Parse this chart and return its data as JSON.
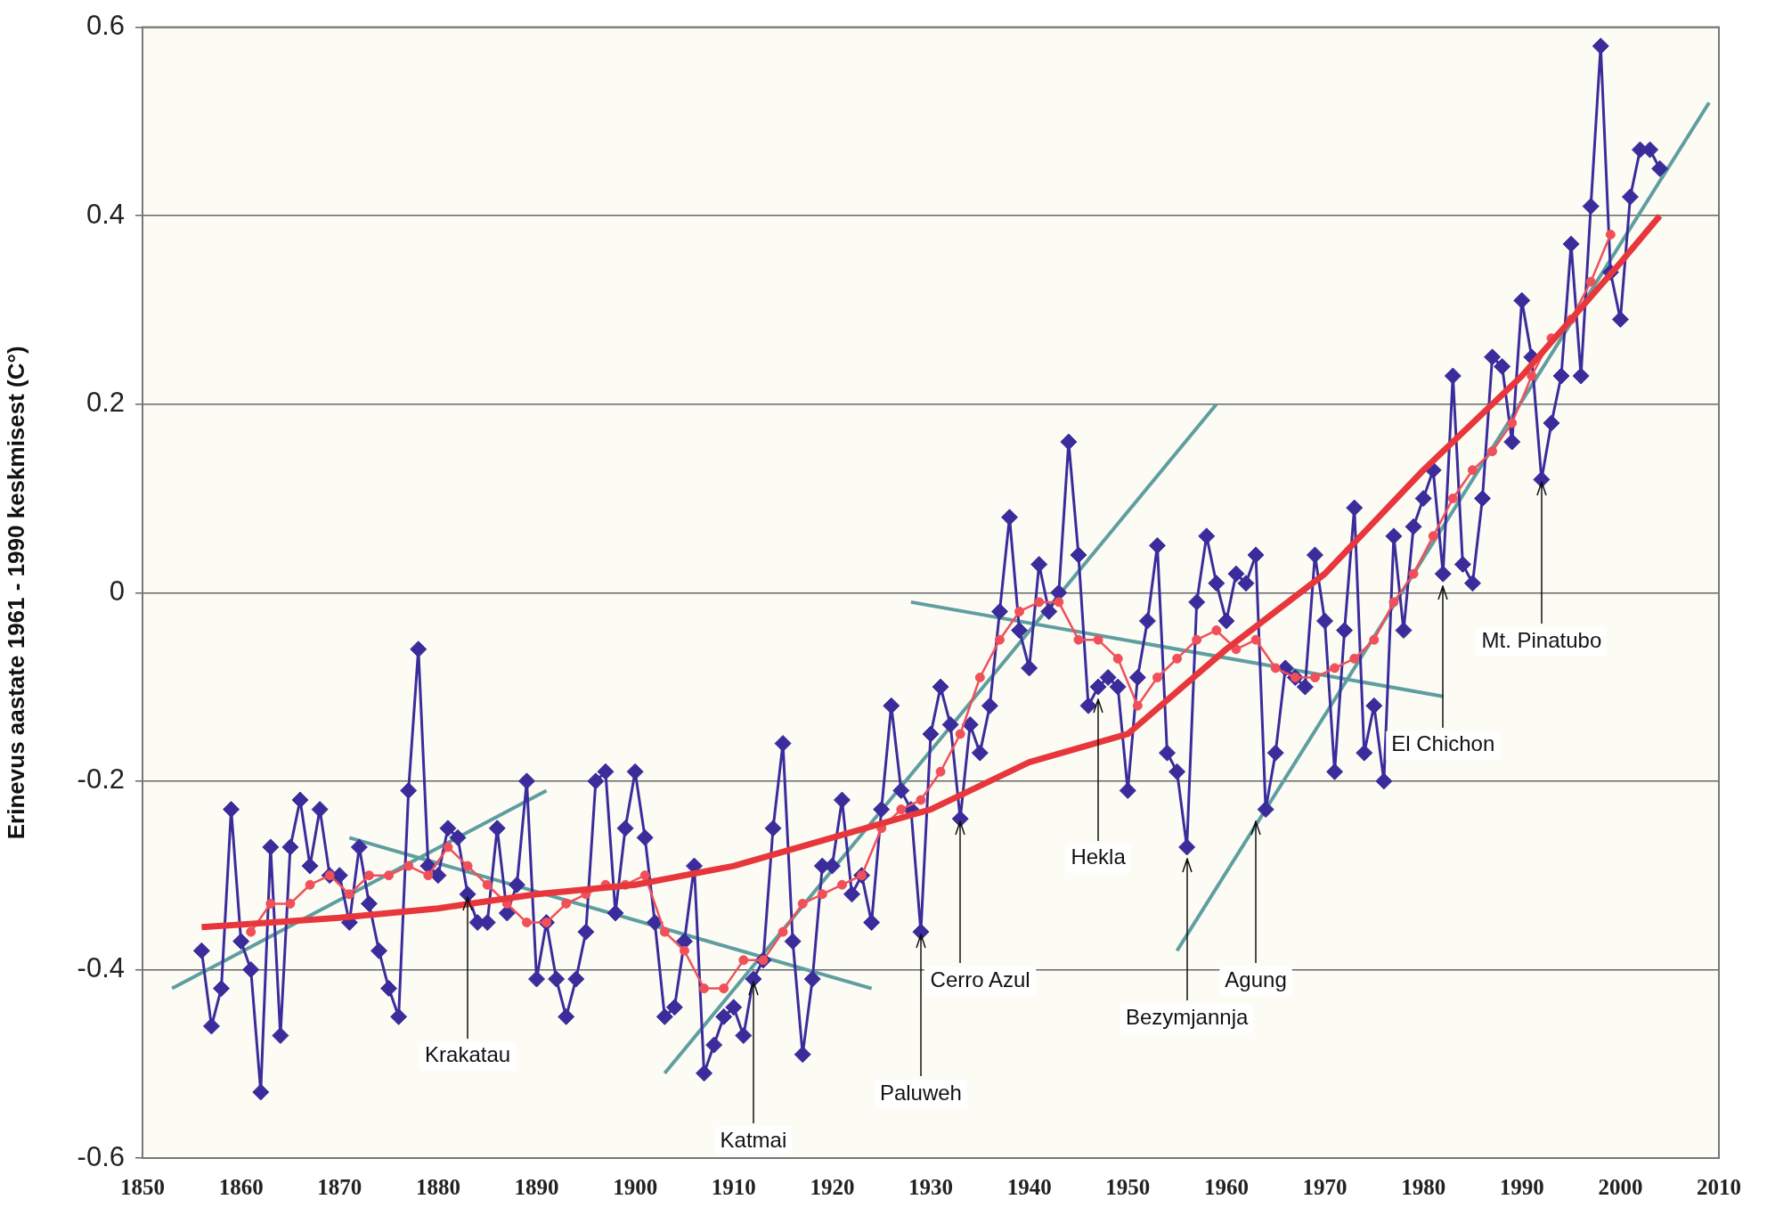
{
  "chart_data": {
    "type": "line",
    "ylabel": "Erinevus aastate 1961 - 1990 keskmisest (C°)",
    "xlim": [
      1850,
      2010
    ],
    "xticks": [
      1850,
      1860,
      1870,
      1880,
      1890,
      1900,
      1910,
      1920,
      1930,
      1940,
      1950,
      1960,
      1970,
      1980,
      1990,
      2000,
      2010
    ],
    "ylim": [
      -0.6,
      0.6
    ],
    "yticks": [
      -0.6,
      -0.4,
      -0.2,
      0,
      0.2,
      0.4,
      0.6
    ],
    "grid": "y",
    "legend": false,
    "series": [
      {
        "type": "line",
        "color": "#5f9ea0",
        "marker": "none",
        "x": [
          1853,
          1891
        ],
        "values": [
          -0.42,
          -0.21
        ]
      },
      {
        "type": "line",
        "color": "#5f9ea0",
        "marker": "none",
        "x": [
          1871,
          1924
        ],
        "values": [
          -0.26,
          -0.42
        ]
      },
      {
        "type": "line",
        "color": "#5f9ea0",
        "marker": "none",
        "x": [
          1903,
          1959
        ],
        "values": [
          -0.51,
          0.2
        ]
      },
      {
        "type": "line",
        "color": "#5f9ea0",
        "marker": "none",
        "x": [
          1928,
          1982
        ],
        "values": [
          -0.01,
          -0.11
        ]
      },
      {
        "type": "line",
        "color": "#5f9ea0",
        "marker": "none",
        "x": [
          1955,
          2009
        ],
        "values": [
          -0.38,
          0.52
        ]
      },
      {
        "type": "line",
        "color": "#3b2c9c",
        "marker": "diamond",
        "x": [
          1856,
          1857,
          1858,
          1859,
          1860,
          1861,
          1862,
          1863,
          1864,
          1865,
          1866,
          1867,
          1868,
          1869,
          1870,
          1871,
          1872,
          1873,
          1874,
          1875,
          1876,
          1877,
          1878,
          1879,
          1880,
          1881,
          1882,
          1883,
          1884,
          1885,
          1886,
          1887,
          1888,
          1889,
          1890,
          1891,
          1892,
          1893,
          1894,
          1895,
          1896,
          1897,
          1898,
          1899,
          1900,
          1901,
          1902,
          1903,
          1904,
          1905,
          1906,
          1907,
          1908,
          1909,
          1910,
          1911,
          1912,
          1913,
          1914,
          1915,
          1916,
          1917,
          1918,
          1919,
          1920,
          1921,
          1922,
          1923,
          1924,
          1925,
          1926,
          1927,
          1928,
          1929,
          1930,
          1931,
          1932,
          1933,
          1934,
          1935,
          1936,
          1937,
          1938,
          1939,
          1940,
          1941,
          1942,
          1943,
          1944,
          1945,
          1946,
          1947,
          1948,
          1949,
          1950,
          1951,
          1952,
          1953,
          1954,
          1955,
          1956,
          1957,
          1958,
          1959,
          1960,
          1961,
          1962,
          1963,
          1964,
          1965,
          1966,
          1967,
          1968,
          1969,
          1970,
          1971,
          1972,
          1973,
          1974,
          1975,
          1976,
          1977,
          1978,
          1979,
          1980,
          1981,
          1982,
          1983,
          1984,
          1985,
          1986,
          1987,
          1988,
          1989,
          1990,
          1991,
          1992,
          1993,
          1994,
          1995,
          1996,
          1997,
          1998,
          1999,
          2000,
          2001,
          2002,
          2003,
          2004
        ],
        "values": [
          -0.38,
          -0.46,
          -0.42,
          -0.23,
          -0.37,
          -0.4,
          -0.53,
          -0.27,
          -0.47,
          -0.27,
          -0.22,
          -0.29,
          -0.23,
          -0.3,
          -0.3,
          -0.35,
          -0.27,
          -0.33,
          -0.38,
          -0.42,
          -0.45,
          -0.21,
          -0.06,
          -0.29,
          -0.3,
          -0.25,
          -0.26,
          -0.32,
          -0.35,
          -0.35,
          -0.25,
          -0.34,
          -0.31,
          -0.2,
          -0.41,
          -0.35,
          -0.41,
          -0.45,
          -0.41,
          -0.36,
          -0.2,
          -0.19,
          -0.34,
          -0.25,
          -0.19,
          -0.26,
          -0.35,
          -0.45,
          -0.44,
          -0.37,
          -0.29,
          -0.51,
          -0.48,
          -0.45,
          -0.44,
          -0.47,
          -0.41,
          -0.39,
          -0.25,
          -0.16,
          -0.37,
          -0.49,
          -0.41,
          -0.29,
          -0.29,
          -0.22,
          -0.32,
          -0.3,
          -0.35,
          -0.23,
          -0.12,
          -0.21,
          -0.23,
          -0.36,
          -0.15,
          -0.1,
          -0.14,
          -0.24,
          -0.14,
          -0.17,
          -0.12,
          -0.02,
          0.08,
          -0.04,
          -0.08,
          0.03,
          -0.02,
          0,
          0.16,
          0.04,
          -0.12,
          -0.1,
          -0.09,
          -0.1,
          -0.21,
          -0.09,
          -0.03,
          0.05,
          -0.17,
          -0.19,
          -0.27,
          -0.01,
          0.06,
          0.01,
          -0.03,
          0.02,
          0.01,
          0.04,
          -0.23,
          -0.17,
          -0.08,
          -0.09,
          -0.1,
          0.04,
          -0.03,
          -0.19,
          -0.04,
          0.09,
          -0.17,
          -0.12,
          -0.2,
          0.06,
          -0.04,
          0.07,
          0.1,
          0.13,
          0.02,
          0.23,
          0.03,
          0.01,
          0.1,
          0.25,
          0.24,
          0.16,
          0.31,
          0.25,
          0.12,
          0.18,
          0.23,
          0.37,
          0.23,
          0.41,
          0.58,
          0.34,
          0.29,
          0.42,
          0.47,
          0.47,
          0.45
        ]
      },
      {
        "type": "line",
        "color": "#f0505a",
        "marker": "circle",
        "x": [
          1861,
          1863,
          1865,
          1867,
          1869,
          1871,
          1873,
          1875,
          1877,
          1879,
          1881,
          1883,
          1885,
          1887,
          1889,
          1891,
          1893,
          1895,
          1897,
          1899,
          1901,
          1903,
          1905,
          1907,
          1909,
          1911,
          1913,
          1915,
          1917,
          1919,
          1921,
          1923,
          1925,
          1927,
          1929,
          1931,
          1933,
          1935,
          1937,
          1939,
          1941,
          1943,
          1945,
          1947,
          1949,
          1951,
          1953,
          1955,
          1957,
          1959,
          1961,
          1963,
          1965,
          1967,
          1969,
          1971,
          1973,
          1975,
          1977,
          1979,
          1981,
          1983,
          1985,
          1987,
          1989,
          1991,
          1993,
          1995,
          1997,
          1999
        ],
        "values": [
          -0.36,
          -0.33,
          -0.33,
          -0.31,
          -0.3,
          -0.32,
          -0.3,
          -0.3,
          -0.29,
          -0.3,
          -0.27,
          -0.29,
          -0.31,
          -0.33,
          -0.35,
          -0.35,
          -0.33,
          -0.32,
          -0.31,
          -0.31,
          -0.3,
          -0.36,
          -0.38,
          -0.42,
          -0.42,
          -0.39,
          -0.39,
          -0.36,
          -0.33,
          -0.32,
          -0.31,
          -0.3,
          -0.25,
          -0.23,
          -0.22,
          -0.19,
          -0.15,
          -0.09,
          -0.05,
          -0.02,
          -0.01,
          -0.01,
          -0.05,
          -0.05,
          -0.07,
          -0.12,
          -0.09,
          -0.07,
          -0.05,
          -0.04,
          -0.06,
          -0.05,
          -0.08,
          -0.09,
          -0.09,
          -0.08,
          -0.07,
          -0.05,
          -0.01,
          0.02,
          0.06,
          0.1,
          0.13,
          0.15,
          0.18,
          0.23,
          0.27,
          0.29,
          0.33,
          0.38
        ]
      },
      {
        "type": "line",
        "color": "#e8373c",
        "marker": "none",
        "x": [
          1856,
          1870,
          1880,
          1890,
          1900,
          1910,
          1920,
          1930,
          1940,
          1950,
          1960,
          1970,
          1980,
          1990,
          2000,
          2004
        ],
        "values": [
          -0.355,
          -0.345,
          -0.335,
          -0.32,
          -0.31,
          -0.29,
          -0.26,
          -0.23,
          -0.18,
          -0.15,
          -0.06,
          0.02,
          0.13,
          0.23,
          0.35,
          0.4
        ]
      }
    ],
    "annotations": [
      {
        "text": "Krakatau",
        "x": 1883,
        "y": -0.32
      },
      {
        "text": "Katmai",
        "x": 1912,
        "y": -0.41
      },
      {
        "text": "Paluweh",
        "x": 1929,
        "y": -0.36
      },
      {
        "text": "Cerro Azul",
        "x": 1933,
        "y": -0.24
      },
      {
        "text": "Hekla",
        "x": 1947,
        "y": -0.11
      },
      {
        "text": "Bezymjannja",
        "x": 1956,
        "y": -0.28
      },
      {
        "text": "Agung",
        "x": 1963,
        "y": -0.24
      },
      {
        "text": "El Chichon",
        "x": 1982,
        "y": 0.01
      },
      {
        "text": "Mt. Pinatubo",
        "x": 1992,
        "y": 0.12
      }
    ]
  }
}
